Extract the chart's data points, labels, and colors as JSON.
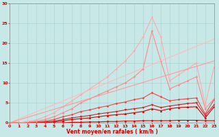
{
  "title": "",
  "xlabel": "Vent moyen/en rafales ( km/h )",
  "ylabel": "",
  "xlim": [
    0,
    23
  ],
  "ylim": [
    0,
    30
  ],
  "xticks": [
    0,
    1,
    2,
    3,
    4,
    5,
    6,
    7,
    8,
    9,
    10,
    11,
    12,
    13,
    14,
    15,
    16,
    17,
    18,
    19,
    20,
    21,
    22,
    23
  ],
  "yticks": [
    0,
    5,
    10,
    15,
    20,
    25,
    30
  ],
  "bg_color": "#c8e8e8",
  "grid_color": "#aacccc",
  "series": [
    {
      "x": [
        0,
        1,
        2,
        3,
        4,
        5,
        6,
        7,
        8,
        9,
        10,
        11,
        12,
        13,
        14,
        15,
        16,
        17,
        18,
        19,
        20,
        21,
        22,
        23
      ],
      "y": [
        0,
        0,
        0,
        0,
        0,
        0,
        0,
        0.1,
        0.1,
        0.2,
        0.2,
        0.3,
        0.3,
        0.4,
        0.4,
        0.5,
        0.5,
        0.5,
        0.5,
        0.6,
        0.6,
        0.6,
        0.5,
        0.5
      ],
      "color": "#dd0000",
      "linewidth": 0.8,
      "marker": "D",
      "markersize": 1.5,
      "alpha": 1.0
    },
    {
      "x": [
        0,
        1,
        2,
        3,
        4,
        5,
        6,
        7,
        8,
        9,
        10,
        11,
        12,
        13,
        14,
        15,
        16,
        17,
        18,
        19,
        20,
        21,
        22,
        23
      ],
      "y": [
        0,
        0,
        0,
        0,
        0.1,
        0.2,
        0.5,
        0.8,
        1.0,
        1.2,
        1.5,
        1.8,
        2.0,
        2.2,
        2.5,
        2.8,
        3.5,
        3.0,
        3.5,
        3.8,
        3.9,
        4.0,
        1.2,
        4.0
      ],
      "color": "#cc0000",
      "linewidth": 0.8,
      "marker": "^",
      "markersize": 2,
      "alpha": 1.0
    },
    {
      "x": [
        0,
        1,
        2,
        3,
        4,
        5,
        6,
        7,
        8,
        9,
        10,
        11,
        12,
        13,
        14,
        15,
        16,
        17,
        18,
        19,
        20,
        21,
        22,
        23
      ],
      "y": [
        0,
        0,
        0,
        0.1,
        0.2,
        0.4,
        0.8,
        1.2,
        1.5,
        1.8,
        2.2,
        2.5,
        2.8,
        3.2,
        3.5,
        3.8,
        4.5,
        3.8,
        4.2,
        4.5,
        4.8,
        5.0,
        1.8,
        4.5
      ],
      "color": "#cc2222",
      "linewidth": 0.8,
      "marker": "v",
      "markersize": 2,
      "alpha": 1.0
    },
    {
      "x": [
        0,
        1,
        2,
        3,
        4,
        5,
        6,
        7,
        8,
        9,
        10,
        11,
        12,
        13,
        14,
        15,
        16,
        17,
        18,
        19,
        20,
        21,
        22,
        23
      ],
      "y": [
        0,
        0,
        0.1,
        0.2,
        0.4,
        0.8,
        1.5,
        2.0,
        2.8,
        3.2,
        3.8,
        4.2,
        4.8,
        5.2,
        5.8,
        6.2,
        7.5,
        6.5,
        5.5,
        5.8,
        6.0,
        6.2,
        2.2,
        5.8
      ],
      "color": "#ee4444",
      "linewidth": 0.8,
      "marker": "D",
      "markersize": 1.5,
      "alpha": 1.0
    },
    {
      "x": [
        0,
        1,
        2,
        3,
        4,
        5,
        6,
        7,
        8,
        9,
        10,
        11,
        12,
        13,
        14,
        15,
        16,
        17,
        18,
        19,
        20,
        21,
        22,
        23
      ],
      "y": [
        0,
        0,
        0.2,
        0.4,
        0.8,
        1.5,
        2.5,
        3.5,
        5.0,
        6.0,
        7.0,
        8.0,
        9.0,
        10.0,
        11.5,
        13.5,
        23.0,
        15.5,
        8.5,
        9.5,
        10.5,
        11.5,
        3.5,
        6.0
      ],
      "color": "#ff8888",
      "linewidth": 0.8,
      "marker": "D",
      "markersize": 1.5,
      "alpha": 1.0
    },
    {
      "x": [
        0,
        1,
        2,
        3,
        4,
        5,
        6,
        7,
        8,
        9,
        10,
        11,
        12,
        13,
        14,
        15,
        16,
        17,
        18,
        19,
        20,
        21,
        22,
        23
      ],
      "y": [
        0,
        0,
        0.3,
        0.7,
        1.5,
        2.5,
        4.0,
        5.5,
        7.0,
        8.5,
        10.0,
        11.5,
        13.5,
        15.5,
        18.0,
        21.5,
        26.5,
        21.5,
        10.5,
        12.0,
        13.5,
        15.0,
        4.5,
        14.0
      ],
      "color": "#ffaaaa",
      "linewidth": 0.8,
      "marker": "D",
      "markersize": 1.5,
      "alpha": 1.0
    },
    {
      "x": [
        0,
        23
      ],
      "y": [
        0,
        21.0
      ],
      "color": "#ffbbbb",
      "linewidth": 0.8,
      "marker": null,
      "markersize": 0,
      "alpha": 1.0
    },
    {
      "x": [
        0,
        23
      ],
      "y": [
        0,
        15.5
      ],
      "color": "#ff9999",
      "linewidth": 0.8,
      "marker": null,
      "markersize": 0,
      "alpha": 1.0
    }
  ]
}
